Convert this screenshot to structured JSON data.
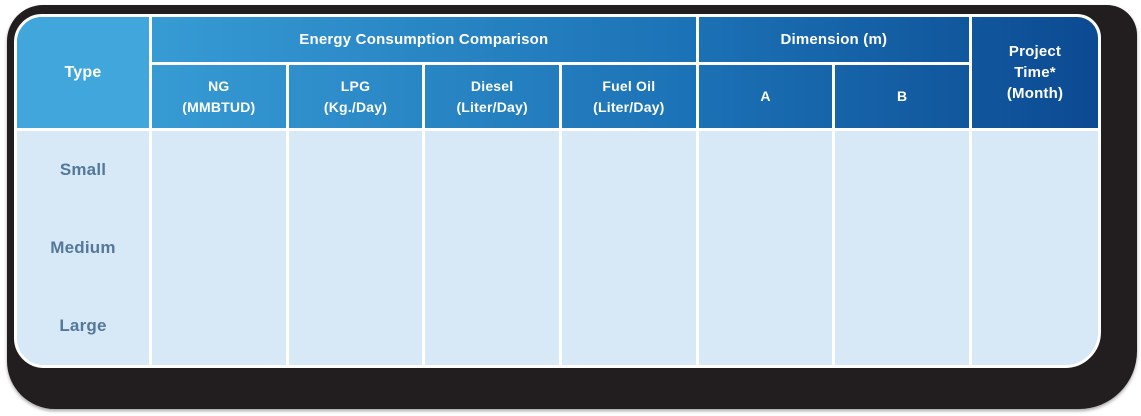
{
  "colors": {
    "frame": "#221E1F",
    "type_header_bg": "#40A6DC",
    "header_gradient_start": "#3DA5DB",
    "header_gradient_end": "#0C4A92",
    "body_bg": "#D7E9F7",
    "body_text": "#53789A",
    "header_text": "#FFFFFF",
    "divider": "#FFFFFF"
  },
  "header": {
    "type_label": "Type",
    "energy_group_label": "Energy Consumption Comparison",
    "dimension_group_label": "Dimension (m)",
    "project_label": "Project\nTime*\n(Month)",
    "columns": {
      "ng": "NG\n(MMBTUD)",
      "lpg": "LPG\n(Kg./Day)",
      "diesel": "Diesel\n(Liter/Day)",
      "fuel_oil": "Fuel Oil\n(Liter/Day)",
      "a": "A",
      "b": "B"
    }
  },
  "rows": [
    {
      "type": "Small",
      "ng": "",
      "lpg": "",
      "diesel": "",
      "fuel_oil": "",
      "a": "",
      "b": "",
      "project_time": ""
    },
    {
      "type": "Medium",
      "ng": "",
      "lpg": "",
      "diesel": "",
      "fuel_oil": "",
      "a": "",
      "b": "",
      "project_time": ""
    },
    {
      "type": "Large",
      "ng": "",
      "lpg": "",
      "diesel": "",
      "fuel_oil": "",
      "a": "",
      "b": "",
      "project_time": ""
    }
  ],
  "chart_data": {
    "type": "table",
    "title": "Energy Consumption Comparison",
    "column_groups": [
      {
        "label": "Energy Consumption Comparison",
        "span": [
          "NG (MMBTUD)",
          "LPG (Kg./Day)",
          "Diesel (Liter/Day)",
          "Fuel Oil (Liter/Day)"
        ]
      },
      {
        "label": "Dimension (m)",
        "span": [
          "A",
          "B"
        ]
      }
    ],
    "columns": [
      "Type",
      "NG (MMBTUD)",
      "LPG (Kg./Day)",
      "Diesel (Liter/Day)",
      "Fuel Oil (Liter/Day)",
      "A",
      "B",
      "Project Time* (Month)"
    ],
    "rows": [
      [
        "Small",
        "",
        "",
        "",
        "",
        "",
        "",
        ""
      ],
      [
        "Medium",
        "",
        "",
        "",
        "",
        "",
        "",
        ""
      ],
      [
        "Large",
        "",
        "",
        "",
        "",
        "",
        "",
        ""
      ]
    ]
  }
}
